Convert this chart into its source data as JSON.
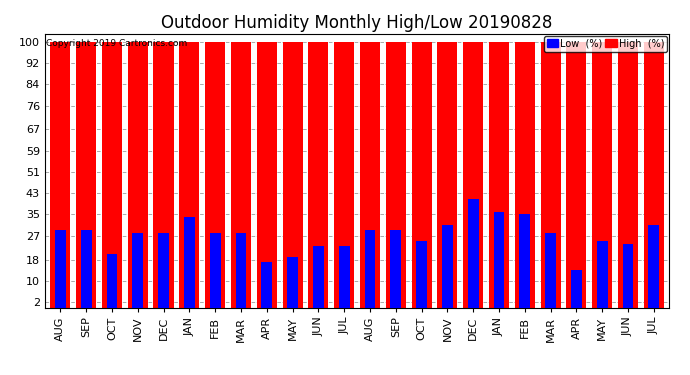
{
  "title": "Outdoor Humidity Monthly High/Low 20190828",
  "copyright": "Copyright 2019 Cartronics.com",
  "categories": [
    "AUG",
    "SEP",
    "OCT",
    "NOV",
    "DEC",
    "JAN",
    "FEB",
    "MAR",
    "APR",
    "MAY",
    "JUN",
    "JUL",
    "AUG",
    "SEP",
    "OCT",
    "NOV",
    "DEC",
    "JAN",
    "FEB",
    "MAR",
    "APR",
    "MAY",
    "JUN",
    "JUL"
  ],
  "high_values": [
    100,
    100,
    100,
    100,
    100,
    100,
    100,
    100,
    100,
    100,
    100,
    100,
    100,
    100,
    100,
    100,
    100,
    100,
    100,
    100,
    100,
    100,
    100,
    100
  ],
  "low_values": [
    29,
    29,
    20,
    28,
    28,
    34,
    28,
    28,
    17,
    19,
    23,
    23,
    29,
    29,
    25,
    31,
    41,
    36,
    35,
    28,
    14,
    25,
    24,
    31
  ],
  "high_color": "#ff0000",
  "low_color": "#0000ff",
  "bg_color": "#ffffff",
  "grid_color": "#aaaaaa",
  "yticks": [
    2,
    10,
    18,
    27,
    35,
    43,
    51,
    59,
    67,
    76,
    84,
    92,
    100
  ],
  "ylim": [
    0,
    103
  ],
  "high_bar_width": 0.78,
  "low_bar_width": 0.42,
  "title_fontsize": 12,
  "tick_fontsize": 8,
  "legend_low_label": "Low  (%)",
  "legend_high_label": "High  (%)"
}
